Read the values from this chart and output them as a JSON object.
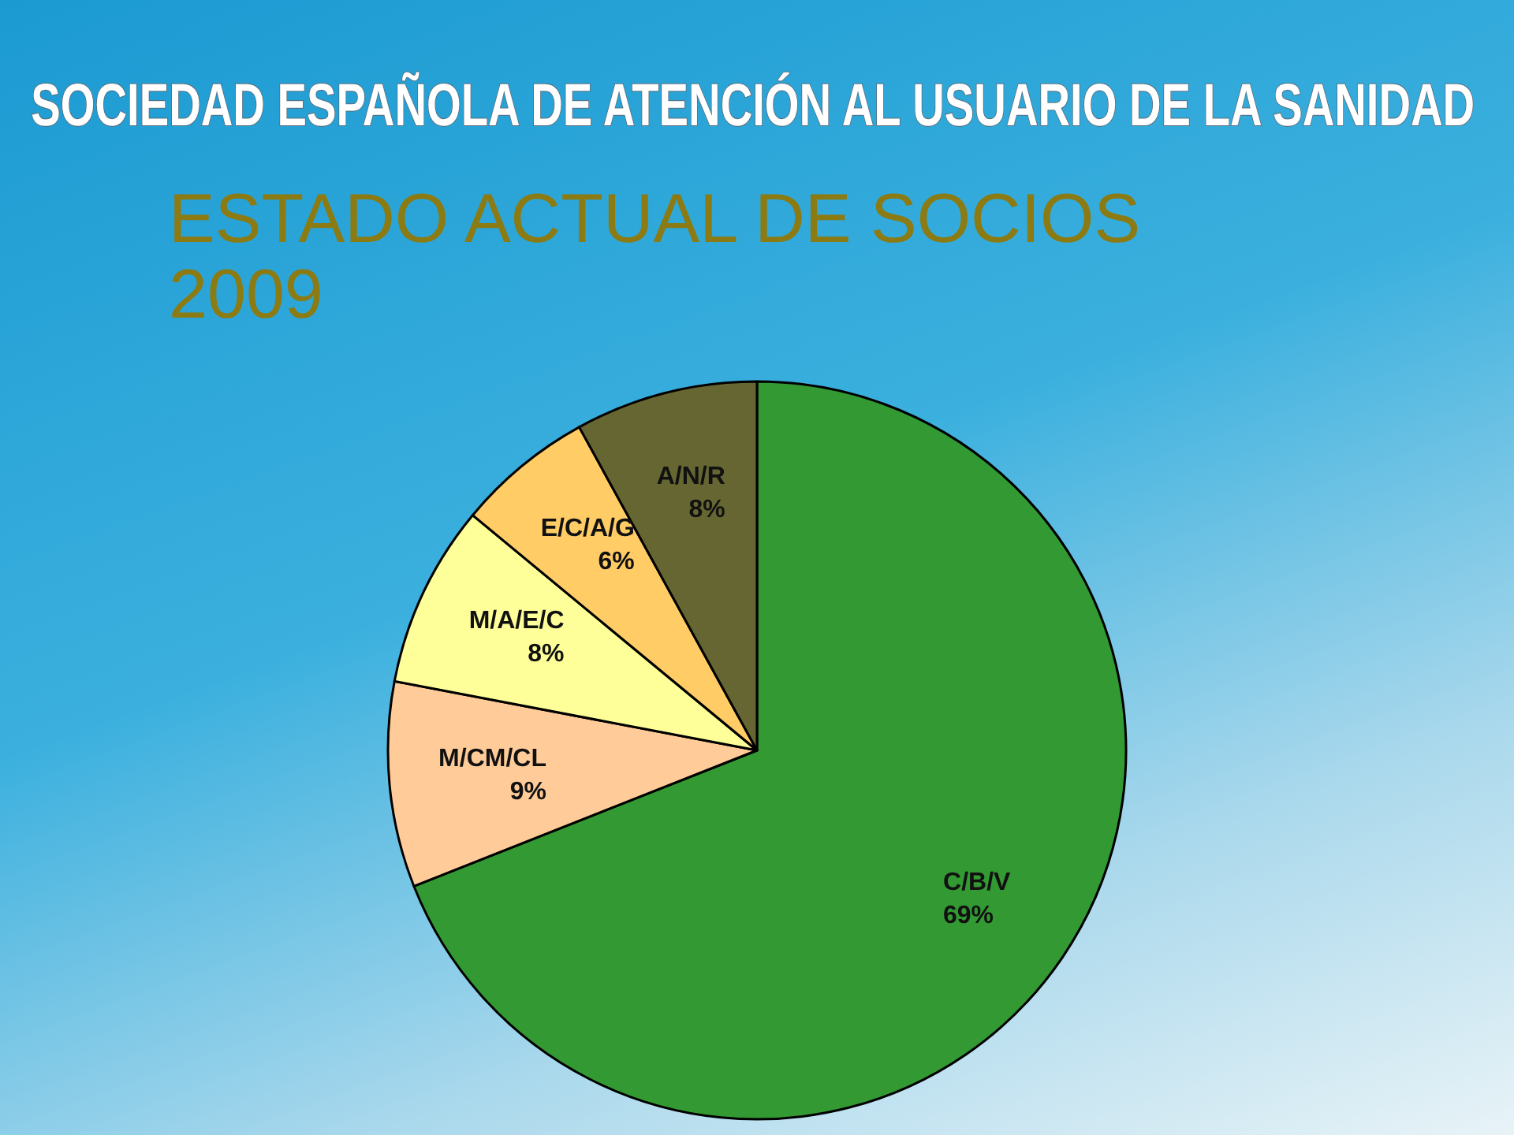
{
  "chart_data": {
    "type": "pie",
    "title": "ESTADO ACTUAL DE SOCIOS 2009",
    "annotations": [
      "SOCIEDAD ESPAÑOLA DE ATENCIÓN AL USUARIO DE LA SANIDAD"
    ],
    "categories": [
      "C/B/V",
      "M/CM/CL",
      "M/A/E/C",
      "E/C/A/G",
      "A/N/R"
    ],
    "values": [
      69,
      9,
      8,
      6,
      8
    ],
    "colors": [
      "#339933",
      "#ffcc99",
      "#ffff99",
      "#ffcc66",
      "#666633"
    ],
    "value_labels": [
      "69%",
      "9%",
      "8%",
      "6%",
      "8%"
    ]
  }
}
